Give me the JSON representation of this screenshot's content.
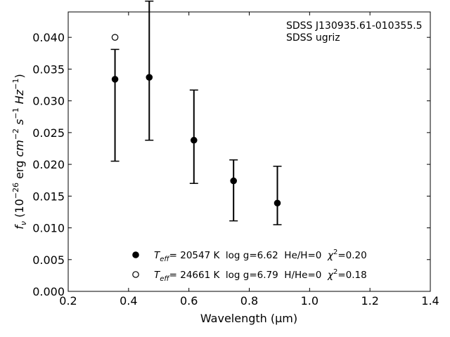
{
  "chart_data": {
    "type": "scatter",
    "xlabel": "Wavelength (μm)",
    "ylabel": "fν (10⁻²⁶ erg cm⁻² s⁻¹ Hz⁻¹)",
    "xlim": [
      0.2,
      1.4
    ],
    "ylim": [
      0.0,
      0.044
    ],
    "x_ticks": [
      "0.2",
      "0.4",
      "0.6",
      "0.8",
      "1.0",
      "1.2",
      "1.4"
    ],
    "y_ticks": [
      "0.000",
      "0.005",
      "0.010",
      "0.015",
      "0.020",
      "0.025",
      "0.030",
      "0.035",
      "0.040"
    ],
    "annotation": [
      "SDSS J130935.61-010355.5",
      "SDSS ugriz"
    ],
    "observed": {
      "x": [
        0.3551,
        0.4686,
        0.6166,
        0.748,
        0.8932
      ],
      "y": [
        0.0334,
        0.0337,
        0.0238,
        0.0175,
        0.0139
      ],
      "err_low": [
        0.0129,
        0.0099,
        0.0068,
        0.0064,
        0.0034
      ],
      "err_high": [
        0.0047,
        0.012,
        0.0079,
        0.0032,
        0.0058
      ],
      "marker": "errorbar-cap"
    },
    "series": [
      {
        "name": "Teff= 20547 K  log g=6.62  He/H=0  χ²=0.20",
        "marker": "filled-circle",
        "x": [
          0.3551,
          0.4686,
          0.6166,
          0.748,
          0.8932
        ],
        "y": [
          0.0334,
          0.0337,
          0.0238,
          0.0174,
          0.0139
        ]
      },
      {
        "name": "Teff= 24661 K  log g=6.79  H/He=0  χ²=0.18",
        "marker": "open-circle",
        "x": [
          0.3551
        ],
        "y": [
          0.04
        ]
      }
    ],
    "legend": [
      {
        "teff_prefix": "T",
        "teff_sub": "eff",
        "text": "= 20547 K  log g=6.62  He/H=0  ",
        "chi_sym": "χ",
        "chi_sup": "2",
        "chi_val": "=0.20",
        "marker": "filled-circle"
      },
      {
        "teff_prefix": "T",
        "teff_sub": "eff",
        "text": "= 24661 K  log g=6.79  H/He=0  ",
        "chi_sym": "χ",
        "chi_sup": "2",
        "chi_val": "=0.18",
        "marker": "open-circle"
      }
    ],
    "legend_position": "lower-center",
    "grid": false
  }
}
